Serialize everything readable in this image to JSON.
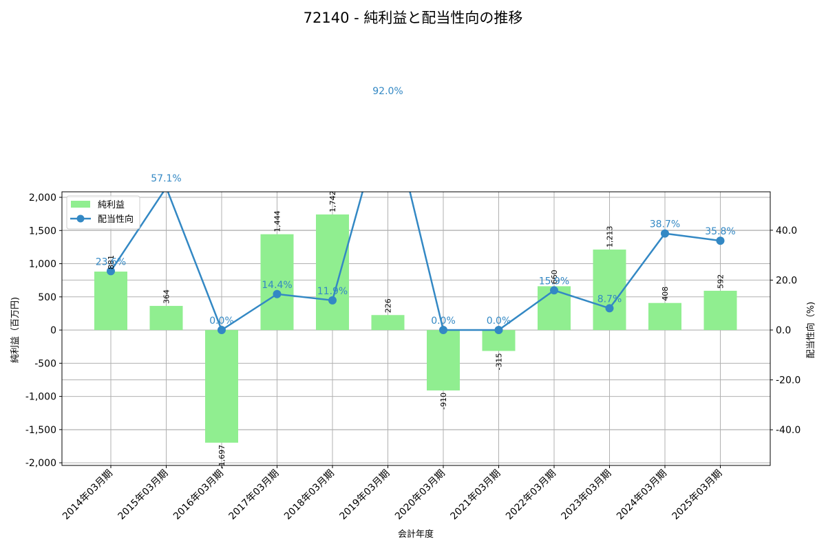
{
  "chart_data": {
    "type": "bar+line",
    "title": "72140 - 純利益と配当性向の推移",
    "xlabel": "会計年度",
    "ylabel_left": "純利益（百万円)",
    "ylabel_right": "配当性向（%)",
    "categories": [
      "2014年03月期",
      "2015年03月期",
      "2016年03月期",
      "2017年03月期",
      "2018年03月期",
      "2019年03月期",
      "2020年03月期",
      "2021年03月期",
      "2022年03月期",
      "2023年03月期",
      "2024年03月期",
      "2025年03月期"
    ],
    "series": [
      {
        "name": "純利益",
        "type": "bar",
        "axis": "left",
        "color": "#90ee90",
        "values": [
          881,
          364,
          -1697,
          1444,
          1742,
          226,
          -910,
          -315,
          660,
          1213,
          408,
          592
        ],
        "labels": [
          "881",
          "364",
          "-1,697",
          "1,444",
          "1,742",
          "226",
          "-910",
          "-315",
          "660",
          "1,213",
          "408",
          "592"
        ]
      },
      {
        "name": "配当性向",
        "type": "line",
        "axis": "right",
        "color": "#3388c4",
        "values": [
          23.6,
          57.1,
          0.0,
          14.4,
          11.9,
          92.0,
          0.0,
          0.0,
          15.9,
          8.7,
          38.7,
          35.8
        ],
        "labels": [
          "23.6%",
          "57.1%",
          "0.0%",
          "14.4%",
          "11.9%",
          "92.0%",
          "0.0%",
          "0.0%",
          "15.9%",
          "8.7%",
          "38.7%",
          "35.8%"
        ]
      }
    ],
    "ylim_left": [
      -2040,
      2083
    ],
    "ylim_right": [
      -54.3,
      55.4
    ],
    "yticks_left": [
      -2000,
      -1500,
      -1000,
      -500,
      0,
      500,
      1000,
      1500,
      2000
    ],
    "yticks_left_labels": [
      "-2,000",
      "-1,500",
      "-1,000",
      "-500",
      "0",
      "500",
      "1,000",
      "1,500",
      "2,000"
    ],
    "yticks_right": [
      -40,
      -20,
      0,
      20,
      40
    ],
    "yticks_right_labels": [
      "-40.0",
      "-20.0",
      "0.0",
      "20.0",
      "40.0"
    ],
    "grid": true,
    "legend_position": "upper left",
    "legend": [
      "純利益",
      "配当性向"
    ]
  }
}
